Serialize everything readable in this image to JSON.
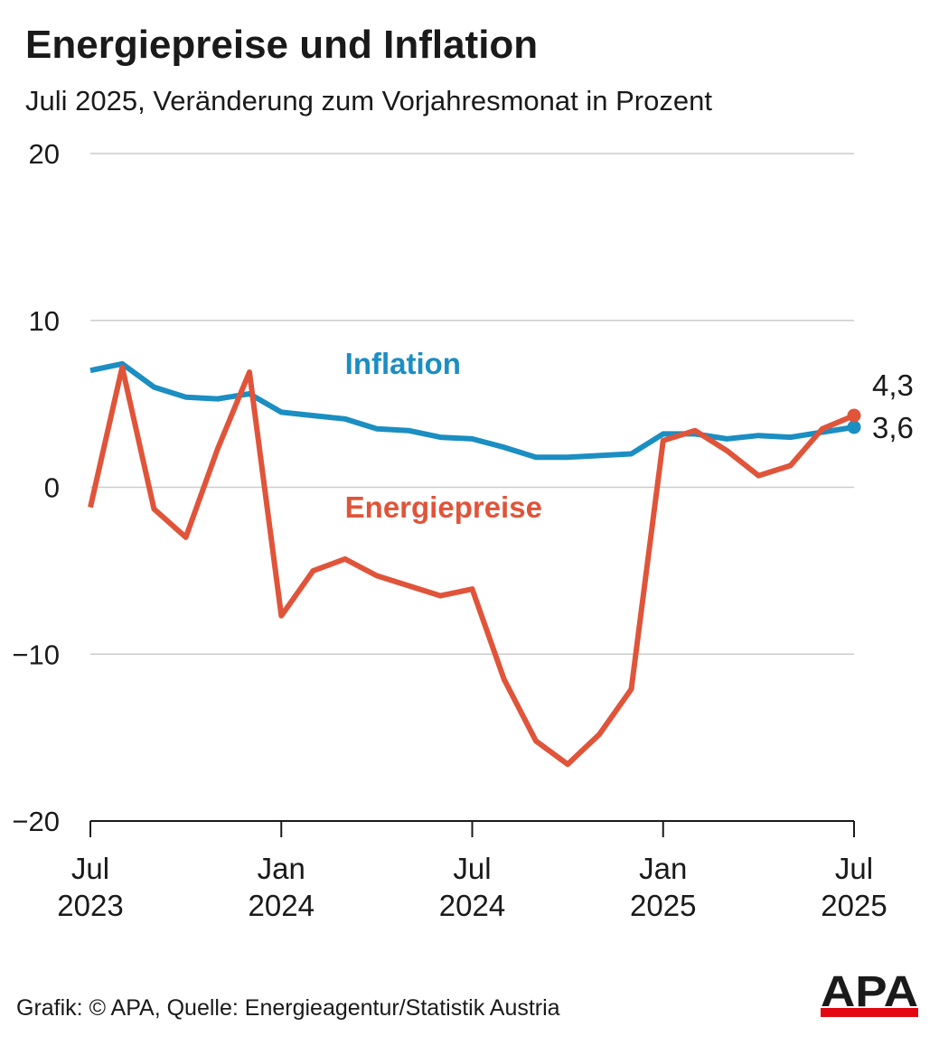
{
  "title": "Energiepreise und Inflation",
  "subtitle": "Juli 2025, Veränderung zum Vorjahresmonat in Prozent",
  "source": "Grafik: © APA, Quelle: Energieagentur/Statistik Austria",
  "logo": "APA",
  "colors": {
    "inflation": "#1b8ec2",
    "energy": "#e0543a",
    "grid": "#cccccc",
    "logo_bar": "#e30613"
  },
  "chart_data": {
    "type": "line",
    "title": "Energiepreise und Inflation",
    "subtitle": "Juli 2025, Veränderung zum Vorjahresmonat in Prozent",
    "xlabel": "",
    "ylabel": "",
    "ylim": [
      -20,
      20
    ],
    "yticks": [
      20,
      10,
      0,
      -10,
      -20
    ],
    "ytick_labels": [
      "20",
      "10",
      "0",
      "−10",
      "−20"
    ],
    "grid": true,
    "x": [
      "2023-07",
      "2023-08",
      "2023-09",
      "2023-10",
      "2023-11",
      "2023-12",
      "2024-01",
      "2024-02",
      "2024-03",
      "2024-04",
      "2024-05",
      "2024-06",
      "2024-07",
      "2024-08",
      "2024-09",
      "2024-10",
      "2024-11",
      "2024-12",
      "2025-01",
      "2025-02",
      "2025-03",
      "2025-04",
      "2025-05",
      "2025-06",
      "2025-07"
    ],
    "xticks": [
      {
        "x": "2023-07",
        "line1": "Jul",
        "line2": "2023"
      },
      {
        "x": "2024-01",
        "line1": "Jan",
        "line2": "2024"
      },
      {
        "x": "2024-07",
        "line1": "Jul",
        "line2": "2024"
      },
      {
        "x": "2025-01",
        "line1": "Jan",
        "line2": "2025"
      },
      {
        "x": "2025-07",
        "line1": "Jul",
        "line2": "2025"
      }
    ],
    "series": [
      {
        "name": "Inflation",
        "color": "#1b8ec2",
        "values": [
          7.0,
          7.4,
          6.0,
          5.4,
          5.3,
          5.6,
          4.5,
          4.3,
          4.1,
          3.5,
          3.4,
          3.0,
          2.9,
          2.4,
          1.8,
          1.8,
          1.9,
          2.0,
          3.2,
          3.2,
          2.9,
          3.1,
          3.0,
          3.3,
          3.6
        ],
        "label_at": {
          "x": "2024-03",
          "y": 6.8
        },
        "end_label": "3,6"
      },
      {
        "name": "Energiepreise",
        "color": "#e0543a",
        "values": [
          -1.2,
          7.2,
          -1.3,
          -3.0,
          2.3,
          6.9,
          -7.7,
          -5.0,
          -4.3,
          -5.3,
          -5.9,
          -6.5,
          -6.1,
          -11.5,
          -15.2,
          -16.6,
          -14.8,
          -12.1,
          2.8,
          3.4,
          2.2,
          0.7,
          1.3,
          3.5,
          4.3
        ],
        "label_at": {
          "x": "2024-03",
          "y": -1.8
        },
        "end_label": "4,3"
      }
    ]
  }
}
